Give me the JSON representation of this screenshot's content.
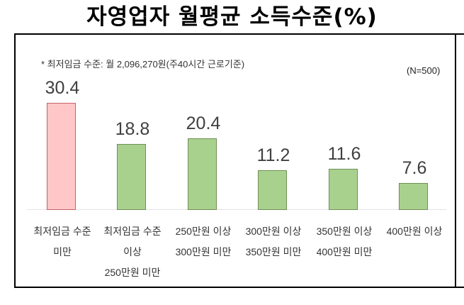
{
  "title": "자영업자 월평균 소득수준(%)",
  "footnote": "* 최저임금 수준: 월 2,096,270원(주40시간 근로기준)",
  "sample_size": "(N=500)",
  "colors": {
    "highlight_fill": "#ffc7c7",
    "highlight_border": "#c7606a",
    "bar_fill": "#a9d18e",
    "bar_border": "#6f8f56",
    "value_text": "#404040"
  },
  "categories": [
    {
      "lines": [
        "최저임금 수준",
        "미만"
      ],
      "value": "30.4"
    },
    {
      "lines": [
        "최저임금 수준",
        "이상",
        "250만원 미만"
      ],
      "value": "18.8"
    },
    {
      "lines": [
        "250만원 이상",
        "300만원 미만"
      ],
      "value": "20.4"
    },
    {
      "lines": [
        "300만원 이상",
        "350만원 미만"
      ],
      "value": "11.2"
    },
    {
      "lines": [
        "350만원 이상",
        "400만원 미만"
      ],
      "value": "11.6"
    },
    {
      "lines": [
        "400만원 이상"
      ],
      "value": "7.6"
    }
  ],
  "chart_data": {
    "type": "bar",
    "title": "자영업자 월평균 소득수준(%)",
    "subtitle": "* 최저임금 수준: 월 2,096,270원(주40시간 근로기준)",
    "annotations": [
      "(N=500)"
    ],
    "categories": [
      "최저임금 수준 미만",
      "최저임금 수준 이상 250만원 미만",
      "250만원 이상 300만원 미만",
      "300만원 이상 350만원 미만",
      "350만원 이상 400만원 미만",
      "400만원 이상"
    ],
    "values": [
      30.4,
      18.8,
      20.4,
      11.2,
      11.6,
      7.6
    ],
    "highlighted_index": 0,
    "xlabel": "",
    "ylabel": "",
    "ylim": [
      0,
      35
    ],
    "grid": false,
    "legend": null,
    "data_labels": true
  }
}
